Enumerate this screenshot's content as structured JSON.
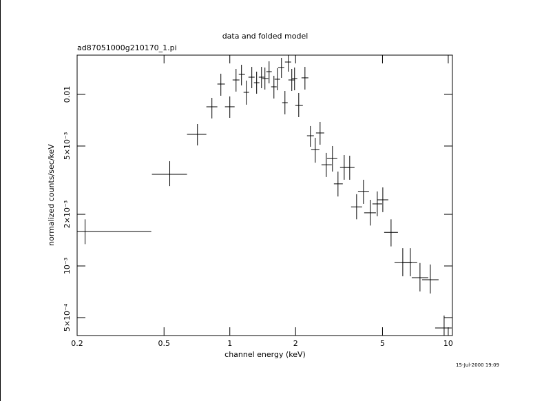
{
  "chart_data": {
    "type": "errorbar",
    "title": "data and folded model",
    "subtitle": "ad87051000g210170_1.pi",
    "xlabel": "channel energy (keV)",
    "ylabel": "normalized counts/sec/keV",
    "annotation": "15-Jul-2000 19:09",
    "xscale": "log",
    "yscale": "log",
    "color": "#000000",
    "xlim": [
      0.2,
      10.45
    ],
    "ylim": [
      0.000393,
      0.01694
    ],
    "xticks": [
      0.2,
      0.5,
      1,
      2,
      5,
      10
    ],
    "yticks": [
      {
        "value": 0.0005,
        "label": "5×10⁻⁴"
      },
      {
        "value": 0.001,
        "label": "10⁻³"
      },
      {
        "value": 0.002,
        "label": "2×10⁻³"
      },
      {
        "value": 0.005,
        "label": "5×10⁻³"
      },
      0.01
    ],
    "x": [
      0.2175,
      0.531,
      0.711,
      0.828,
      0.91,
      1.0,
      1.068,
      1.131,
      1.19,
      1.261,
      1.327,
      1.397,
      1.448,
      1.513,
      1.592,
      1.651,
      1.724,
      1.788,
      1.854,
      1.922,
      1.979,
      2.068,
      2.208,
      2.339,
      2.462,
      2.59,
      2.765,
      2.951,
      3.128,
      3.34,
      3.539,
      3.806,
      4.093,
      4.401,
      4.733,
      5.017,
      5.473,
      6.192,
      6.708,
      7.424,
      8.279,
      9.574
    ],
    "x_low": [
      0.2,
      0.44,
      0.637,
      0.781,
      0.877,
      0.95,
      1.03,
      1.099,
      1.156,
      1.217,
      1.289,
      1.357,
      1.407,
      1.47,
      1.546,
      1.603,
      1.663,
      1.737,
      1.788,
      1.854,
      1.922,
      1.994,
      2.129,
      2.256,
      2.356,
      2.48,
      2.628,
      2.785,
      2.995,
      3.197,
      3.34,
      3.591,
      3.862,
      4.123,
      4.498,
      4.733,
      5.09,
      5.675,
      6.147,
      6.806,
      7.588,
      8.712
    ],
    "x_high": [
      0.437,
      0.637,
      0.781,
      0.877,
      0.95,
      1.052,
      1.107,
      1.173,
      1.225,
      1.299,
      1.367,
      1.438,
      1.502,
      1.557,
      1.639,
      1.699,
      1.775,
      1.841,
      1.909,
      1.979,
      2.038,
      2.16,
      2.289,
      2.426,
      2.571,
      2.705,
      2.93,
      3.105,
      3.291,
      3.539,
      3.724,
      4.034,
      4.338,
      4.665,
      4.981,
      5.317,
      5.885,
      6.806,
      7.211,
      8.099,
      9.034,
      10.37
    ],
    "values": [
      0.00159,
      0.00342,
      0.00585,
      0.00847,
      0.01149,
      0.00847,
      0.01214,
      0.01308,
      0.01028,
      0.0126,
      0.0117,
      0.0126,
      0.01237,
      0.01357,
      0.01107,
      0.01226,
      0.01434,
      0.00895,
      0.01544,
      0.01214,
      0.01237,
      0.00862,
      0.01249,
      0.00574,
      0.00477,
      0.00596,
      0.00389,
      0.00423,
      0.00301,
      0.00375,
      0.00375,
      0.00221,
      0.00272,
      0.00204,
      0.0023,
      0.00243,
      0.00157,
      0.00105,
      0.00105,
      0.000855,
      0.000831,
      0.000435
    ],
    "y_low": [
      0.00134,
      0.00292,
      0.00504,
      0.00724,
      0.00982,
      0.0073,
      0.01038,
      0.01128,
      0.00871,
      0.01087,
      0.01009,
      0.01087,
      0.01067,
      0.0116,
      0.00946,
      0.01057,
      0.01249,
      0.00765,
      0.01357,
      0.01047,
      0.01057,
      0.00737,
      0.01067,
      0.00495,
      0.004,
      0.00509,
      0.0033,
      0.00355,
      0.00254,
      0.00318,
      0.00318,
      0.00187,
      0.0023,
      0.00172,
      0.00195,
      0.00206,
      0.0013,
      0.000871,
      0.000871,
      0.00071,
      0.000691,
      0.000393
    ],
    "y_high": [
      0.00187,
      0.00408,
      0.00672,
      0.00955,
      0.0132,
      0.00973,
      0.01408,
      0.01488,
      0.01203,
      0.01447,
      0.01357,
      0.01447,
      0.01434,
      0.01559,
      0.01284,
      0.01421,
      0.01633,
      0.01047,
      0.01694,
      0.01408,
      0.01434,
      0.01019,
      0.01447,
      0.00654,
      0.00558,
      0.00691,
      0.00456,
      0.005,
      0.00355,
      0.00443,
      0.00439,
      0.00262,
      0.00318,
      0.00243,
      0.00272,
      0.00287,
      0.00187,
      0.00127,
      0.00127,
      0.00104,
      0.00102,
      0.000514
    ]
  }
}
